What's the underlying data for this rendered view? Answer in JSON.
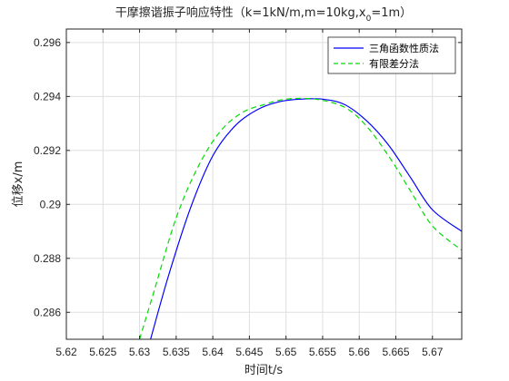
{
  "chart_data": {
    "type": "line",
    "title": "干摩擦谐振子响应特性（k=1kN/m,m=10kg,x",
    "title_sub": "0",
    "title_tail": "=1m）",
    "xlabel": "时间t/s",
    "ylabel": "位移x/m",
    "xlim": [
      5.62,
      5.674
    ],
    "ylim": [
      0.285,
      0.2965
    ],
    "xticks": [
      5.62,
      5.625,
      5.63,
      5.635,
      5.64,
      5.645,
      5.65,
      5.655,
      5.66,
      5.665,
      5.67
    ],
    "xtick_labels": [
      "5.62",
      "5.625",
      "5.63",
      "5.635",
      "5.64",
      "5.645",
      "5.65",
      "5.655",
      "5.66",
      "5.665",
      "5.67"
    ],
    "yticks": [
      0.286,
      0.288,
      0.29,
      0.292,
      0.294,
      0.296
    ],
    "ytick_labels": [
      "0.286",
      "0.288",
      "0.29",
      "0.292",
      "0.294",
      "0.296"
    ],
    "grid": true,
    "legend_position": "top-right",
    "series": [
      {
        "name": "三角函数性质法",
        "color": "#0000ff",
        "dash": "solid",
        "x": [
          5.6315,
          5.634,
          5.637,
          5.64,
          5.643,
          5.646,
          5.649,
          5.652,
          5.655,
          5.658,
          5.661,
          5.664,
          5.667,
          5.67,
          5.674
        ],
        "y": [
          0.285,
          0.2874,
          0.2899,
          0.2918,
          0.2929,
          0.2935,
          0.2938,
          0.2939,
          0.2939,
          0.2937,
          0.2931,
          0.2922,
          0.291,
          0.2898,
          0.289
        ]
      },
      {
        "name": "有限差分法",
        "color": "#00dd00",
        "dash": "dashed",
        "x": [
          5.63,
          5.632,
          5.635,
          5.638,
          5.641,
          5.644,
          5.647,
          5.65,
          5.654,
          5.658,
          5.661,
          5.664,
          5.667,
          5.67,
          5.674
        ],
        "y": [
          0.285,
          0.2868,
          0.2895,
          0.2914,
          0.2927,
          0.2934,
          0.2937,
          0.2939,
          0.2939,
          0.2936,
          0.2929,
          0.2918,
          0.2905,
          0.2892,
          0.2883
        ]
      }
    ]
  }
}
